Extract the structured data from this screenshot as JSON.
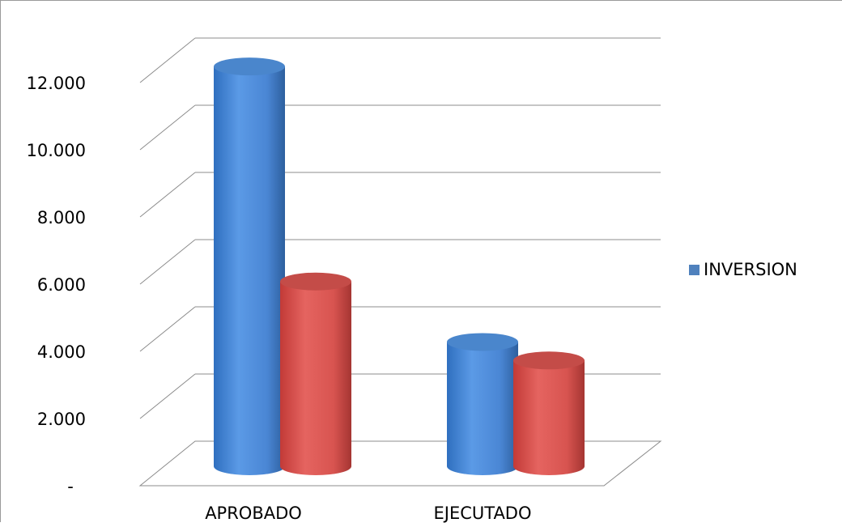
{
  "chart_data": {
    "type": "bar",
    "style": "3d-cylinder",
    "categories": [
      "APROBADO",
      "EJECUTADO"
    ],
    "series": [
      {
        "name": "INVERSION",
        "color": "#4f81bd",
        "values": [
          11900,
          3700
        ]
      },
      {
        "color": "#c0504d",
        "values": [
          5500,
          3150
        ]
      }
    ],
    "yticks": [
      "-",
      "2.000",
      "4.000",
      "6.000",
      "8.000",
      "10.000",
      "12.000"
    ],
    "ylim": [
      0,
      12000
    ],
    "grid": true,
    "legend": {
      "position": "right"
    }
  }
}
